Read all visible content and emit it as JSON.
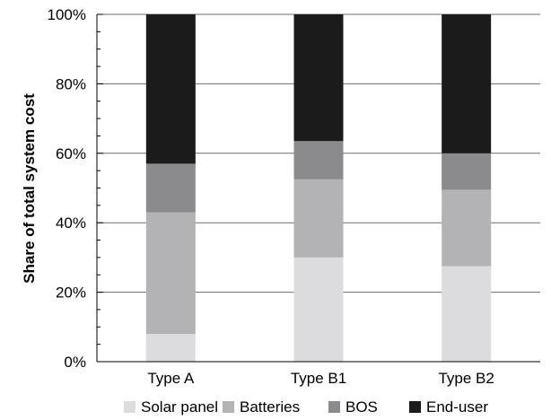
{
  "chart_data": {
    "type": "bar",
    "stacked": true,
    "title": "",
    "xlabel": "",
    "ylabel": "Share of total system cost",
    "categories": [
      "Type A",
      "Type B1",
      "Type B2"
    ],
    "ylim": [
      0,
      100
    ],
    "yticks": [
      0,
      20,
      40,
      60,
      80,
      100
    ],
    "ytick_labels": [
      "0%",
      "20%",
      "40%",
      "60%",
      "80%",
      "100%"
    ],
    "grid": true,
    "legend_position": "bottom",
    "series": [
      {
        "name": "Solar panel",
        "color": "#dcdcde",
        "values": [
          8,
          30,
          27.5
        ]
      },
      {
        "name": "Batteries",
        "color": "#b3b3b5",
        "values": [
          35,
          22.5,
          22
        ]
      },
      {
        "name": "BOS",
        "color": "#8b8b8d",
        "values": [
          14,
          11,
          10.5
        ]
      },
      {
        "name": "End-user",
        "color": "#1b1b1b",
        "values": [
          43,
          36.5,
          40
        ]
      }
    ]
  }
}
